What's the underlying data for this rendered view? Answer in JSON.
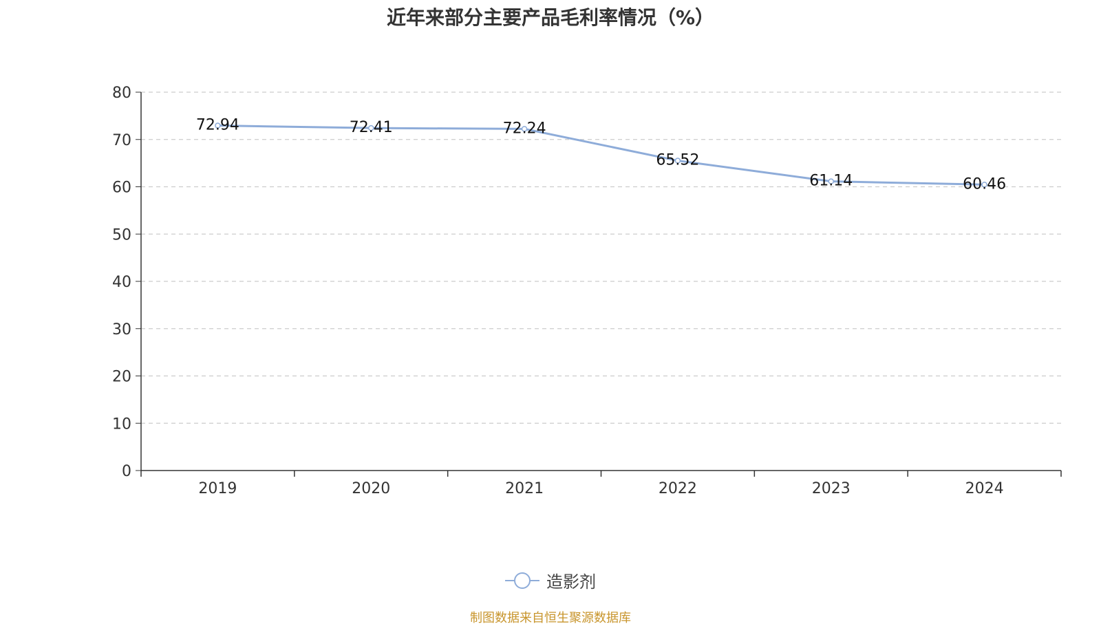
{
  "chart_data": {
    "type": "line",
    "title": "近年来部分主要产品毛利率情况（%）",
    "categories": [
      "2019",
      "2020",
      "2021",
      "2022",
      "2023",
      "2024"
    ],
    "series": [
      {
        "name": "造影剂",
        "values": [
          72.94,
          72.41,
          72.24,
          65.52,
          61.14,
          60.46
        ],
        "color": "#8eacd9"
      }
    ],
    "yticks": [
      0,
      10,
      20,
      30,
      40,
      50,
      60,
      70,
      80
    ],
    "ylim": [
      0,
      80
    ],
    "xlabel": "",
    "ylabel": "",
    "grid": true,
    "legend_position": "bottom-center"
  },
  "source": "制图数据来自恒生聚源数据库",
  "colors": {
    "line": "#8eacd9",
    "grid": "#cccccc",
    "axis": "#333333",
    "source": "#c8952c"
  }
}
